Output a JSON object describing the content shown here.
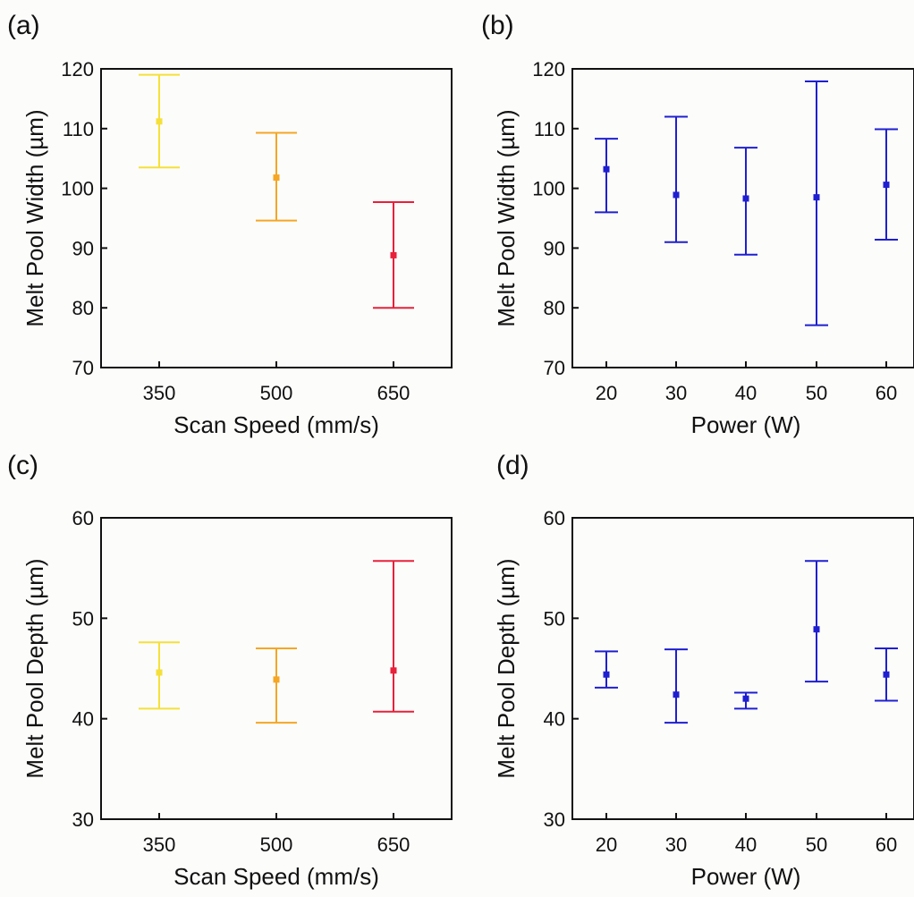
{
  "chart_data": [
    {
      "panel": "(a)",
      "type": "scatter",
      "xlabel": "Scan Speed (mm/s)",
      "ylabel": "Melt Pool Width (µm)",
      "categories": [
        "350",
        "500",
        "650"
      ],
      "ylim": [
        70,
        120
      ],
      "yticks": [
        "70",
        "80",
        "90",
        "100",
        "110",
        "120"
      ],
      "points": [
        {
          "x": "350",
          "y": 111.2,
          "low": 103.5,
          "high": 119.0,
          "color": "#f5e03a"
        },
        {
          "x": "500",
          "y": 101.8,
          "low": 94.6,
          "high": 109.3,
          "color": "#f5a623"
        },
        {
          "x": "650",
          "y": 88.8,
          "low": 80.0,
          "high": 97.7,
          "color": "#e8203a"
        }
      ]
    },
    {
      "panel": "(b)",
      "type": "scatter",
      "xlabel": "Power (W)",
      "ylabel": "Melt Pool Width (µm)",
      "categories": [
        "20",
        "30",
        "40",
        "50",
        "60"
      ],
      "ylim": [
        70,
        120
      ],
      "yticks": [
        "70",
        "80",
        "90",
        "100",
        "110",
        "120"
      ],
      "points": [
        {
          "x": "20",
          "y": 103.2,
          "low": 96.0,
          "high": 108.3,
          "color": "#1f1fd0"
        },
        {
          "x": "30",
          "y": 98.9,
          "low": 91.0,
          "high": 112.0,
          "color": "#1f1fd0"
        },
        {
          "x": "40",
          "y": 98.3,
          "low": 88.9,
          "high": 106.8,
          "color": "#1f1fd0"
        },
        {
          "x": "50",
          "y": 98.5,
          "low": 77.1,
          "high": 117.9,
          "color": "#1f1fd0"
        },
        {
          "x": "60",
          "y": 100.6,
          "low": 91.4,
          "high": 109.9,
          "color": "#1f1fd0"
        }
      ]
    },
    {
      "panel": "(c)",
      "type": "scatter",
      "xlabel": "Scan Speed (mm/s)",
      "ylabel": "Melt Pool Depth (µm)",
      "categories": [
        "350",
        "500",
        "650"
      ],
      "ylim": [
        30,
        60
      ],
      "yticks": [
        "30",
        "40",
        "50",
        "60"
      ],
      "points": [
        {
          "x": "350",
          "y": 44.6,
          "low": 41.0,
          "high": 47.6,
          "color": "#f5e03a"
        },
        {
          "x": "500",
          "y": 43.9,
          "low": 39.6,
          "high": 47.0,
          "color": "#f5a623"
        },
        {
          "x": "650",
          "y": 44.8,
          "low": 40.7,
          "high": 55.7,
          "color": "#e8203a"
        }
      ]
    },
    {
      "panel": "(d)",
      "type": "scatter",
      "xlabel": "Power (W)",
      "ylabel": "Melt Pool Depth (µm)",
      "categories": [
        "20",
        "30",
        "40",
        "50",
        "60"
      ],
      "ylim": [
        30,
        60
      ],
      "yticks": [
        "30",
        "40",
        "50",
        "60"
      ],
      "points": [
        {
          "x": "20",
          "y": 44.4,
          "low": 43.1,
          "high": 46.7,
          "color": "#1f1fd0"
        },
        {
          "x": "30",
          "y": 42.4,
          "low": 39.6,
          "high": 46.9,
          "color": "#1f1fd0"
        },
        {
          "x": "40",
          "y": 42.0,
          "low": 41.0,
          "high": 42.6,
          "color": "#1f1fd0"
        },
        {
          "x": "50",
          "y": 48.9,
          "low": 43.7,
          "high": 55.7,
          "color": "#1f1fd0"
        },
        {
          "x": "60",
          "y": 44.4,
          "low": 41.8,
          "high": 47.0,
          "color": "#1f1fd0"
        }
      ]
    }
  ]
}
